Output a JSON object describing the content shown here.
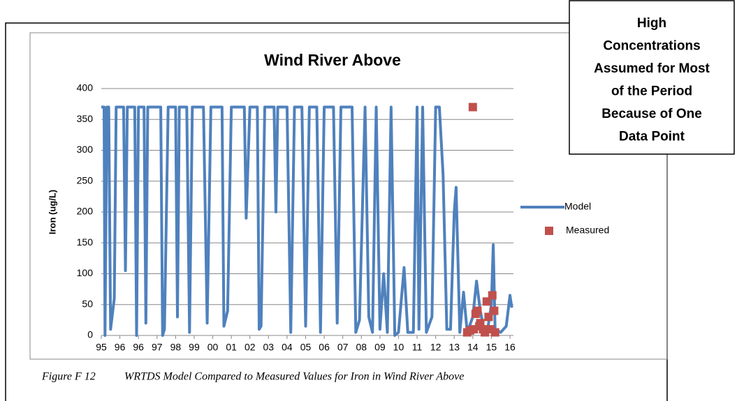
{
  "chart_data": {
    "type": "line",
    "title": "Wind River Above",
    "y_label": "Iron (ug/L)",
    "xlim": [
      0,
      22
    ],
    "ylim": [
      0,
      400
    ],
    "xticks": [
      {
        "value": 0,
        "label": "95"
      },
      {
        "value": 1,
        "label": "96"
      },
      {
        "value": 2,
        "label": "96"
      },
      {
        "value": 3,
        "label": "97"
      },
      {
        "value": 4,
        "label": "98"
      },
      {
        "value": 5,
        "label": "99"
      },
      {
        "value": 6,
        "label": "00"
      },
      {
        "value": 7,
        "label": "01"
      },
      {
        "value": 8,
        "label": "02"
      },
      {
        "value": 9,
        "label": "03"
      },
      {
        "value": 10,
        "label": "04"
      },
      {
        "value": 11,
        "label": "05"
      },
      {
        "value": 12,
        "label": "06"
      },
      {
        "value": 13,
        "label": "07"
      },
      {
        "value": 14,
        "label": "08"
      },
      {
        "value": 15,
        "label": "09"
      },
      {
        "value": 16,
        "label": "10"
      },
      {
        "value": 17,
        "label": "11"
      },
      {
        "value": 18,
        "label": "12"
      },
      {
        "value": 19,
        "label": "13"
      },
      {
        "value": 20,
        "label": "14"
      },
      {
        "value": 21,
        "label": "15"
      },
      {
        "value": 22,
        "label": "16"
      }
    ],
    "yticks": [
      0,
      50,
      100,
      150,
      200,
      250,
      300,
      350,
      400
    ],
    "grid": true,
    "series": [
      {
        "name": "Model",
        "type": "line",
        "color": "#4f81bd",
        "x": [
          0,
          0.15,
          0.2,
          0.3,
          0.4,
          0.5,
          0.7,
          0.8,
          1.2,
          1.3,
          1.4,
          1.8,
          1.9,
          2.0,
          2.3,
          2.4,
          2.5,
          3.2,
          3.3,
          3.4,
          3.6,
          4.0,
          4.1,
          4.2,
          4.6,
          4.75,
          4.9,
          5.5,
          5.7,
          5.9,
          6.5,
          6.6,
          6.8,
          7.0,
          7.7,
          7.8,
          8.0,
          8.4,
          8.5,
          8.6,
          8.8,
          9.3,
          9.4,
          9.5,
          10.0,
          10.2,
          10.4,
          10.8,
          11.0,
          11.2,
          11.6,
          11.8,
          12.0,
          12.5,
          12.7,
          12.9,
          13.5,
          13.7,
          13.9,
          14.2,
          14.4,
          14.6,
          14.8,
          15.0,
          15.2,
          15.4,
          15.6,
          15.8,
          16.0,
          16.3,
          16.5,
          16.8,
          17.0,
          17.1,
          17.3,
          17.5,
          17.8,
          18.0,
          18.2,
          18.4,
          18.6,
          18.8,
          19.0,
          19.1,
          19.3,
          19.5,
          19.7,
          20.0,
          20.2,
          20.4,
          20.6,
          20.8,
          21.0,
          21.1,
          21.2,
          21.5,
          21.8,
          22.0,
          22.1
        ],
        "values": [
          370,
          370,
          0,
          370,
          370,
          10,
          60,
          370,
          370,
          105,
          370,
          370,
          0,
          370,
          370,
          20,
          370,
          370,
          0,
          10,
          370,
          370,
          30,
          370,
          370,
          5,
          370,
          370,
          20,
          370,
          370,
          15,
          40,
          370,
          370,
          190,
          370,
          370,
          10,
          15,
          370,
          370,
          200,
          370,
          370,
          5,
          370,
          370,
          15,
          370,
          370,
          5,
          370,
          370,
          20,
          370,
          370,
          5,
          25,
          370,
          30,
          5,
          370,
          10,
          100,
          5,
          370,
          0,
          5,
          110,
          5,
          5,
          370,
          10,
          370,
          5,
          30,
          370,
          370,
          260,
          10,
          10,
          200,
          240,
          5,
          70,
          5,
          30,
          88,
          40,
          10,
          10,
          50,
          147,
          10,
          5,
          15,
          65,
          45
        ]
      },
      {
        "name": "Measured",
        "type": "scatter",
        "color": "#c0504d",
        "x": [
          19.7,
          19.85,
          20.0,
          20.05,
          20.15,
          20.25,
          20.35,
          20.4,
          20.55,
          20.65,
          20.75,
          20.85,
          20.95,
          21.05,
          21.15,
          21.2
        ],
        "values": [
          5,
          8,
          370,
          10,
          35,
          40,
          15,
          20,
          10,
          5,
          55,
          30,
          10,
          65,
          40,
          5
        ]
      }
    ]
  },
  "caption": {
    "label": "Figure F 12",
    "text": "WRTDS Model Compared to Measured Values for Iron in Wind River Above"
  },
  "annotation": [
    "High",
    "Concentrations",
    "Assumed for Most",
    "of the Period",
    "Because of One",
    "Data Point"
  ]
}
